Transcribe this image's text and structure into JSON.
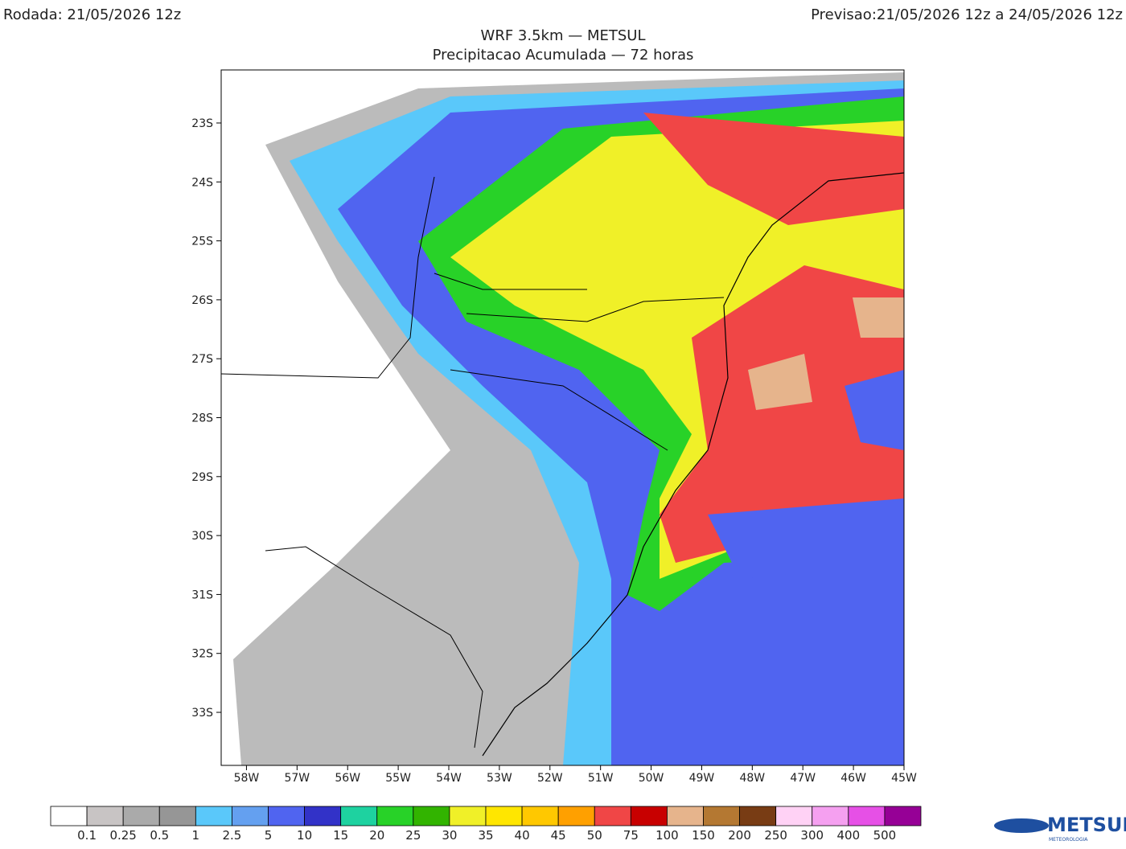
{
  "header": {
    "run": "Rodada: 21/05/2026 12z",
    "forecast": "Previsao:21/05/2026 12z a 24/05/2026 12z",
    "title": "WRF 3.5km — METSUL",
    "subtitle": "Precipitacao Acumulada — 72 horas"
  },
  "map": {
    "lonlim": [
      -58.5,
      -45
    ],
    "latlim": [
      -33.9,
      -22.1
    ],
    "lon_ticks": [
      {
        "value": -58,
        "label": "58W"
      },
      {
        "value": -57,
        "label": "57W"
      },
      {
        "value": -56,
        "label": "56W"
      },
      {
        "value": -55,
        "label": "55W"
      },
      {
        "value": -54,
        "label": "54W"
      },
      {
        "value": -53,
        "label": "53W"
      },
      {
        "value": -52,
        "label": "52W"
      },
      {
        "value": -51,
        "label": "51W"
      },
      {
        "value": -50,
        "label": "50W"
      },
      {
        "value": -49,
        "label": "49W"
      },
      {
        "value": -48,
        "label": "48W"
      },
      {
        "value": -47,
        "label": "47W"
      },
      {
        "value": -46,
        "label": "46W"
      },
      {
        "value": -45,
        "label": "45W"
      }
    ],
    "lat_ticks": [
      {
        "value": -23,
        "label": "23S"
      },
      {
        "value": -24,
        "label": "24S"
      },
      {
        "value": -25,
        "label": "25S"
      },
      {
        "value": -26,
        "label": "26S"
      },
      {
        "value": -27,
        "label": "27S"
      },
      {
        "value": -28,
        "label": "28S"
      },
      {
        "value": -29,
        "label": "29S"
      },
      {
        "value": -30,
        "label": "30S"
      },
      {
        "value": -31,
        "label": "31S"
      },
      {
        "value": -32,
        "label": "32S"
      },
      {
        "value": -33,
        "label": "33S"
      }
    ]
  },
  "colorbar": {
    "levels": [
      0.1,
      0.25,
      0.5,
      1,
      2.5,
      5,
      10,
      15,
      20,
      25,
      30,
      35,
      40,
      45,
      50,
      75,
      100,
      150,
      200,
      250,
      300,
      400,
      500
    ],
    "colors": [
      "#ffffff",
      "#c8c4c4",
      "#aaaaaa",
      "#969696",
      "#5ac8fa",
      "#64a0f0",
      "#5064f0",
      "#3232c8",
      "#1ed2a0",
      "#28d228",
      "#32b400",
      "#f0f028",
      "#ffe600",
      "#ffc800",
      "#ffa000",
      "#f04646",
      "#c80000",
      "#e6b48c",
      "#b47832",
      "#783c14",
      "#ffd2f5",
      "#f5a0f0",
      "#e650e6",
      "#960096"
    ]
  },
  "logo": {
    "name": "METSUL",
    "tagline": "METEOROLOGIA"
  }
}
